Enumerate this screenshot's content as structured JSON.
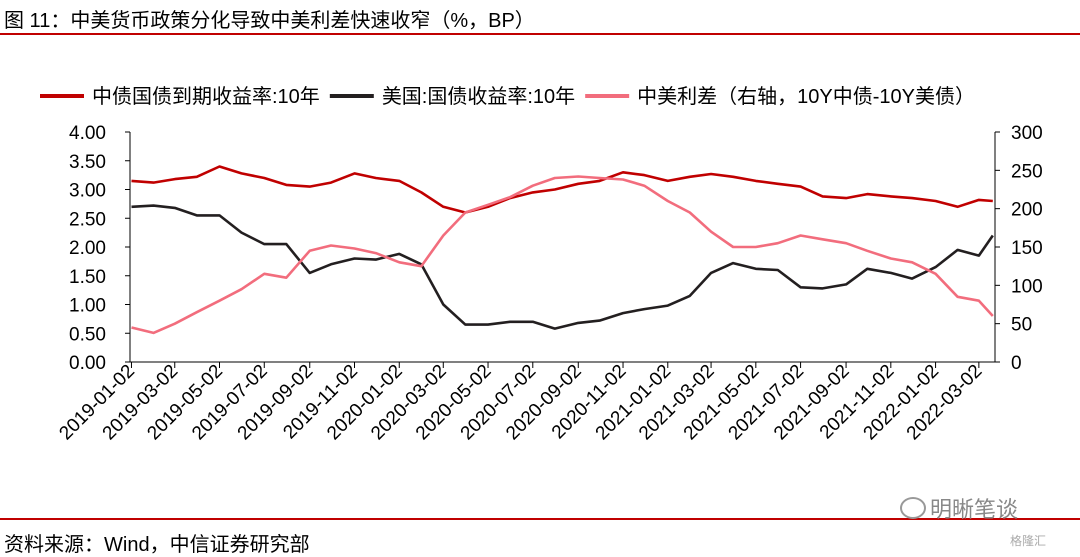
{
  "figure": {
    "title": "图 11：中美货币政策分化导致中美利差快速收窄（%，BP）",
    "source": "资料来源：Wind，中信证券研究部",
    "watermark": "明晰笔谈",
    "logo_text": "格隆汇"
  },
  "chart_data": {
    "type": "line",
    "title": "",
    "legend_position": "top",
    "grid": false,
    "x": [
      "2019-01-02",
      "2019-02-01",
      "2019-03-02",
      "2019-04-01",
      "2019-05-02",
      "2019-06-01",
      "2019-07-02",
      "2019-08-01",
      "2019-09-02",
      "2019-10-01",
      "2019-11-02",
      "2019-12-01",
      "2020-01-02",
      "2020-02-01",
      "2020-03-02",
      "2020-04-01",
      "2020-05-02",
      "2020-06-01",
      "2020-07-02",
      "2020-08-01",
      "2020-09-02",
      "2020-10-01",
      "2020-11-02",
      "2020-12-01",
      "2021-01-02",
      "2021-02-01",
      "2021-03-02",
      "2021-04-01",
      "2021-05-02",
      "2021-06-01",
      "2021-07-02",
      "2021-08-01",
      "2021-09-02",
      "2021-10-01",
      "2021-11-02",
      "2021-12-01",
      "2022-01-02",
      "2022-02-01",
      "2022-03-02",
      "2022-03-21"
    ],
    "x_tick_labels": [
      "2019-01-02",
      "2019-03-02",
      "2019-05-02",
      "2019-07-02",
      "2019-09-02",
      "2019-11-02",
      "2020-01-02",
      "2020-03-02",
      "2020-05-02",
      "2020-07-02",
      "2020-09-02",
      "2020-11-02",
      "2021-01-02",
      "2021-03-02",
      "2021-05-02",
      "2021-07-02",
      "2021-09-02",
      "2021-11-02",
      "2022-01-02",
      "2022-03-02"
    ],
    "y_left": {
      "ylim": [
        0,
        4
      ],
      "ticks": [
        "0.00",
        "0.50",
        "1.00",
        "1.50",
        "2.00",
        "2.50",
        "3.00",
        "3.50",
        "4.00"
      ]
    },
    "y_right": {
      "ylim": [
        0,
        300
      ],
      "ticks": [
        "0",
        "50",
        "100",
        "150",
        "200",
        "250",
        "300"
      ]
    },
    "series": [
      {
        "name": "中债国债到期收益率:10年",
        "axis": "left",
        "color": "#c00000",
        "values": [
          3.15,
          3.12,
          3.18,
          3.22,
          3.4,
          3.28,
          3.2,
          3.08,
          3.05,
          3.12,
          3.28,
          3.2,
          3.15,
          2.95,
          2.7,
          2.6,
          2.7,
          2.85,
          2.95,
          3.0,
          3.1,
          3.15,
          3.3,
          3.25,
          3.15,
          3.22,
          3.27,
          3.22,
          3.15,
          3.1,
          3.05,
          2.88,
          2.85,
          2.92,
          2.88,
          2.85,
          2.8,
          2.7,
          2.82,
          2.8
        ]
      },
      {
        "name": "美国:国债收益率:10年",
        "axis": "left",
        "color": "#231f20",
        "values": [
          2.7,
          2.72,
          2.68,
          2.55,
          2.55,
          2.25,
          2.05,
          2.05,
          1.55,
          1.7,
          1.8,
          1.78,
          1.88,
          1.7,
          1.0,
          0.65,
          0.65,
          0.7,
          0.7,
          0.58,
          0.68,
          0.72,
          0.85,
          0.92,
          0.98,
          1.15,
          1.55,
          1.72,
          1.62,
          1.6,
          1.3,
          1.28,
          1.35,
          1.62,
          1.55,
          1.45,
          1.65,
          1.95,
          1.85,
          2.2
        ]
      },
      {
        "name": "中美利差（右轴，10Y中债-10Y美债）",
        "axis": "right",
        "color": "#f26d7d",
        "values": [
          45,
          38,
          50,
          65,
          80,
          95,
          115,
          110,
          145,
          152,
          148,
          142,
          130,
          125,
          165,
          195,
          205,
          215,
          230,
          240,
          242,
          240,
          238,
          230,
          210,
          195,
          170,
          150,
          150,
          155,
          165,
          160,
          155,
          145,
          135,
          130,
          115,
          85,
          80,
          60
        ]
      }
    ]
  }
}
